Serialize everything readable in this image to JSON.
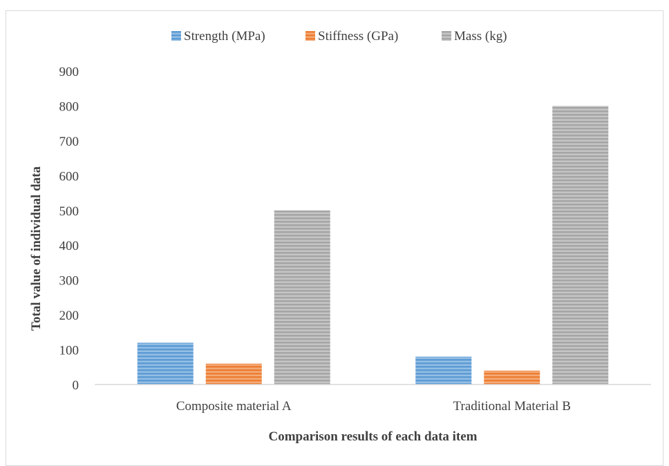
{
  "chart_data": {
    "type": "bar",
    "title": "",
    "xlabel": "Comparison results of each data item",
    "ylabel": "Total value of individual data",
    "categories": [
      "Composite material A",
      "Traditional Material B"
    ],
    "series": [
      {
        "name": "Strength (MPa)",
        "values": [
          120,
          80
        ],
        "color": "#5b9bd5"
      },
      {
        "name": "Stiffness (GPa)",
        "values": [
          60,
          40
        ],
        "color": "#ed7d31"
      },
      {
        "name": "Mass (kg)",
        "values": [
          500,
          800
        ],
        "color": "#a5a5a5"
      }
    ],
    "ylim": [
      0,
      900
    ],
    "yticks": [
      0,
      100,
      200,
      300,
      400,
      500,
      600,
      700,
      800,
      900
    ],
    "grid": false,
    "legend_position": "top",
    "bar_fill_pattern": "horizontal-stripes"
  }
}
